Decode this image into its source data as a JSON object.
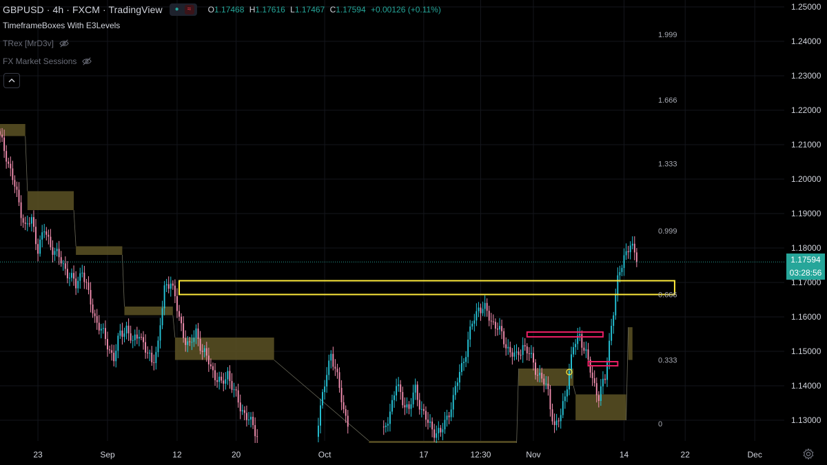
{
  "header": {
    "title": "GBPUSD · 4h · FXCM · TradingView",
    "ohlc": {
      "o_label": "O",
      "o": "1.17468",
      "h_label": "H",
      "h": "1.17616",
      "l_label": "L",
      "l": "1.17467",
      "c_label": "C",
      "c": "1.17594",
      "change": "+0.00126 (+0.11%)"
    }
  },
  "indicators": [
    {
      "label": "TimeframeBoxes With E3Levels"
    },
    {
      "label": "TRex [MrD3v]"
    },
    {
      "label": "FX Market Sessions"
    }
  ],
  "price_axis": {
    "labels": [
      "1.25000",
      "1.24000",
      "1.23000",
      "1.22000",
      "1.21000",
      "1.20000",
      "1.19000",
      "1.18000",
      "1.17000",
      "1.16000",
      "1.15000",
      "1.14000",
      "1.13000"
    ],
    "current_price": "1.17594",
    "countdown": "03:28:56"
  },
  "time_axis": {
    "labels": [
      "23",
      "Sep",
      "12",
      "20",
      "Oct",
      "17",
      "12:30",
      "Nov",
      "14",
      "22",
      "Dec"
    ]
  },
  "levels": {
    "labels": [
      "1.999",
      "1.666",
      "1.333",
      "0.999",
      "0.666",
      "0.333",
      "0"
    ]
  },
  "colors": {
    "up": "#26c6da",
    "down": "#f48fb1",
    "box": "#5c5225",
    "zone": "#ffeb3b",
    "supply": "#e91e63",
    "price_tag": "#26a69a"
  },
  "chart_data": {
    "type": "candlestick",
    "symbol": "GBPUSD",
    "interval": "4h",
    "y_range": [
      1.124,
      1.252
    ],
    "current_price": 1.17594,
    "close_path": [
      [
        0,
        1.212
      ],
      [
        3,
        1.207
      ],
      [
        6,
        1.2
      ],
      [
        9,
        1.193
      ],
      [
        12,
        1.186
      ],
      [
        15,
        1.188
      ],
      [
        18,
        1.18
      ],
      [
        21,
        1.185
      ],
      [
        24,
        1.181
      ],
      [
        27,
        1.178
      ],
      [
        30,
        1.175
      ],
      [
        33,
        1.172
      ],
      [
        36,
        1.169
      ],
      [
        39,
        1.174
      ],
      [
        42,
        1.166
      ],
      [
        45,
        1.16
      ],
      [
        48,
        1.156
      ],
      [
        51,
        1.152
      ],
      [
        54,
        1.148
      ],
      [
        57,
        1.155
      ],
      [
        60,
        1.157
      ],
      [
        63,
        1.152
      ],
      [
        66,
        1.156
      ],
      [
        69,
        1.15
      ],
      [
        72,
        1.147
      ],
      [
        75,
        1.152
      ],
      [
        78,
        1.168
      ],
      [
        81,
        1.171
      ],
      [
        84,
        1.162
      ],
      [
        87,
        1.155
      ],
      [
        90,
        1.151
      ],
      [
        93,
        1.156
      ],
      [
        96,
        1.15
      ],
      [
        99,
        1.147
      ],
      [
        102,
        1.143
      ],
      [
        105,
        1.14
      ],
      [
        108,
        1.144
      ],
      [
        111,
        1.138
      ],
      [
        114,
        1.134
      ],
      [
        117,
        1.131
      ],
      [
        120,
        1.128
      ],
      [
        123,
        1.125
      ],
      [
        151,
        1.13
      ],
      [
        154,
        1.14
      ],
      [
        157,
        1.15
      ],
      [
        160,
        1.142
      ],
      [
        163,
        1.133
      ],
      [
        166,
        1.128
      ],
      [
        182,
        1.126
      ],
      [
        185,
        1.133
      ],
      [
        188,
        1.14
      ],
      [
        191,
        1.136
      ],
      [
        194,
        1.133
      ],
      [
        197,
        1.139
      ],
      [
        200,
        1.133
      ],
      [
        203,
        1.129
      ],
      [
        206,
        1.127
      ],
      [
        209,
        1.126
      ],
      [
        212,
        1.131
      ],
      [
        215,
        1.136
      ],
      [
        218,
        1.144
      ],
      [
        221,
        1.15
      ],
      [
        224,
        1.158
      ],
      [
        227,
        1.163
      ],
      [
        230,
        1.162
      ],
      [
        233,
        1.159
      ],
      [
        236,
        1.157
      ],
      [
        239,
        1.153
      ],
      [
        242,
        1.15
      ],
      [
        245,
        1.148
      ],
      [
        248,
        1.152
      ],
      [
        251,
        1.149
      ],
      [
        254,
        1.145
      ],
      [
        257,
        1.142
      ],
      [
        260,
        1.138
      ],
      [
        263,
        1.128
      ],
      [
        266,
        1.131
      ],
      [
        269,
        1.141
      ],
      [
        272,
        1.151
      ],
      [
        275,
        1.155
      ],
      [
        278,
        1.149
      ],
      [
        281,
        1.142
      ],
      [
        284,
        1.137
      ],
      [
        287,
        1.142
      ],
      [
        290,
        1.158
      ],
      [
        293,
        1.17
      ],
      [
        296,
        1.178
      ],
      [
        299,
        1.181
      ],
      [
        302,
        1.1759
      ]
    ],
    "boxes": [
      {
        "from": 0,
        "to": 12,
        "lo": 1.2125,
        "hi": 1.216
      },
      {
        "from": 13,
        "to": 35,
        "lo": 1.191,
        "hi": 1.1965
      },
      {
        "from": 36,
        "to": 58,
        "lo": 1.178,
        "hi": 1.1805
      },
      {
        "from": 59,
        "to": 82,
        "lo": 1.1605,
        "hi": 1.163
      },
      {
        "from": 83,
        "to": 130,
        "lo": 1.1475,
        "hi": 1.154
      },
      {
        "from": 175,
        "to": 245,
        "lo": 1.1225,
        "hi": 1.124
      },
      {
        "from": 246,
        "to": 272,
        "lo": 1.14,
        "hi": 1.145
      },
      {
        "from": 273,
        "to": 297,
        "lo": 1.13,
        "hi": 1.1375
      },
      {
        "from": 298,
        "to": 300,
        "lo": 1.1475,
        "hi": 1.157
      }
    ],
    "zones": [
      {
        "kind": "demand",
        "from": 85,
        "to": 320,
        "lo": 1.1665,
        "hi": 1.1705
      },
      {
        "kind": "supply",
        "from": 250,
        "to": 286,
        "lo": 1.1542,
        "hi": 1.1556
      },
      {
        "kind": "supply",
        "from": 279,
        "to": 293,
        "lo": 1.1458,
        "hi": 1.147
      }
    ],
    "levels": [
      {
        "label": "1.999",
        "price": 1.242
      },
      {
        "label": "1.666",
        "price": 1.223
      },
      {
        "label": "1.333",
        "price": 1.2045
      },
      {
        "label": "0.999",
        "price": 1.185
      },
      {
        "label": "0.666",
        "price": 1.1665
      },
      {
        "label": "0.333",
        "price": 1.1475
      },
      {
        "label": "0",
        "price": 1.129
      }
    ],
    "time_ticks": [
      {
        "label": "23",
        "index": 18
      },
      {
        "label": "Sep",
        "index": 51
      },
      {
        "label": "12",
        "index": 84
      },
      {
        "label": "20",
        "index": 112
      },
      {
        "label": "Oct",
        "index": 154
      },
      {
        "label": "17",
        "index": 201
      },
      {
        "label": "12:30",
        "index": 228
      },
      {
        "label": "Nov",
        "index": 253
      },
      {
        "label": "14",
        "index": 296
      },
      {
        "label": "22",
        "index": 325
      },
      {
        "label": "Dec",
        "index": 358
      }
    ],
    "x_range": [
      0,
      372
    ]
  }
}
